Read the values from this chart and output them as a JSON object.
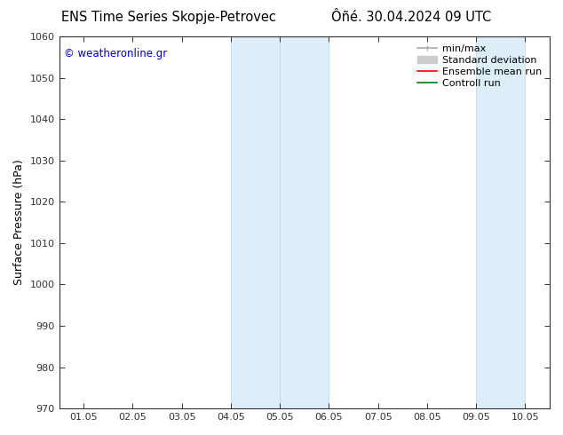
{
  "title_left": "ENS Time Series Skopje-Petrovec",
  "title_right": "Ôñé. 30.04.2024 09 UTC",
  "ylabel": "Surface Pressure (hPa)",
  "ylim": [
    970,
    1060
  ],
  "yticks": [
    970,
    980,
    990,
    1000,
    1010,
    1020,
    1030,
    1040,
    1050,
    1060
  ],
  "xtick_labels": [
    "01.05",
    "02.05",
    "03.05",
    "04.05",
    "05.05",
    "06.05",
    "07.05",
    "08.05",
    "09.05",
    "10.05"
  ],
  "n_xticks": 10,
  "watermark": "© weatheronline.gr",
  "watermark_color": "#0000cc",
  "shaded_regions": [
    {
      "xstart": 3.0,
      "xend": 4.0,
      "color": "#ddeef8"
    },
    {
      "xstart": 4.0,
      "xend": 5.0,
      "color": "#ddeef8"
    },
    {
      "xstart": 8.0,
      "xend": 9.0,
      "color": "#ddeef8"
    }
  ],
  "shaded_border_color": "#b8d8ee",
  "legend_entries": [
    {
      "label": "min/max",
      "color": "#aaaaaa",
      "lw": 1.2
    },
    {
      "label": "Standard deviation",
      "color": "#cccccc",
      "lw": 5
    },
    {
      "label": "Ensemble mean run",
      "color": "#ff0000",
      "lw": 1.2
    },
    {
      "label": "Controll run",
      "color": "#008000",
      "lw": 1.2
    }
  ],
  "bg_color": "#ffffff",
  "plot_bg_color": "#ffffff",
  "spine_color": "#333333",
  "tick_color": "#333333",
  "title_fontsize": 10.5,
  "label_fontsize": 9,
  "tick_fontsize": 8,
  "watermark_fontsize": 8.5
}
